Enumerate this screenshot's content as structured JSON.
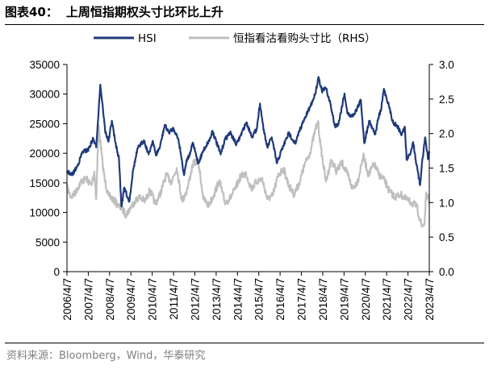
{
  "figure": {
    "label": "图表40：",
    "title": "上周恒指期权头寸比环比上升",
    "source": "资料来源：Bloomberg，Wind，华泰研究"
  },
  "colors": {
    "hsi": "#1F3A7A",
    "ratio": "#BFBFBF"
  },
  "chart_data": {
    "type": "line",
    "title": "",
    "x_type": "date",
    "x_range": [
      "2006-04-07",
      "2023-04-07"
    ],
    "categories": [
      "2006/4/7",
      "2007/4/7",
      "2008/4/7",
      "2009/4/7",
      "2010/4/7",
      "2011/4/7",
      "2012/4/7",
      "2013/4/7",
      "2014/4/7",
      "2015/4/7",
      "2016/4/7",
      "2017/4/7",
      "2018/4/7",
      "2019/4/7",
      "2020/4/7",
      "2021/4/7",
      "2022/4/7",
      "2023/4/7"
    ],
    "y_left": {
      "ticks": [
        "0",
        "5000",
        "10000",
        "15000",
        "20000",
        "25000",
        "30000",
        "35000"
      ],
      "lim": [
        0,
        35000
      ]
    },
    "y_right": {
      "ticks": [
        "0.0",
        "0.5",
        "1.0",
        "1.5",
        "2.0",
        "2.5",
        "3.0"
      ],
      "lim": [
        0,
        3.0
      ]
    },
    "legend_position": "top",
    "grid": false,
    "series": [
      {
        "name": "HSI",
        "axis": "left",
        "color": "#1F3A7A",
        "x": [
          "2006-04-07",
          "2006-07-01",
          "2006-10-01",
          "2007-01-01",
          "2007-04-01",
          "2007-07-01",
          "2007-08-20",
          "2007-10-30",
          "2007-12-15",
          "2008-01-20",
          "2008-03-20",
          "2008-05-15",
          "2008-07-15",
          "2008-09-15",
          "2008-10-27",
          "2008-12-15",
          "2009-03-09",
          "2009-05-15",
          "2009-08-01",
          "2009-11-15",
          "2010-02-05",
          "2010-04-15",
          "2010-06-08",
          "2010-08-15",
          "2010-11-08",
          "2011-01-15",
          "2011-04-08",
          "2011-07-01",
          "2011-08-10",
          "2011-10-04",
          "2011-11-15",
          "2012-01-15",
          "2012-03-01",
          "2012-06-04",
          "2012-09-01",
          "2012-12-31",
          "2013-02-01",
          "2013-06-24",
          "2013-09-01",
          "2013-12-02",
          "2014-03-20",
          "2014-06-01",
          "2014-09-03",
          "2014-12-15",
          "2015-03-01",
          "2015-04-28",
          "2015-07-08",
          "2015-09-01",
          "2015-11-15",
          "2016-02-12",
          "2016-05-01",
          "2016-09-01",
          "2016-12-28",
          "2017-03-01",
          "2017-06-01",
          "2017-09-01",
          "2017-11-22",
          "2018-01-26",
          "2018-03-23",
          "2018-06-01",
          "2018-08-15",
          "2018-10-30",
          "2019-01-03",
          "2019-04-15",
          "2019-06-05",
          "2019-08-15",
          "2019-11-01",
          "2020-01-20",
          "2020-03-19",
          "2020-06-10",
          "2020-09-25",
          "2020-11-15",
          "2021-01-01",
          "2021-02-17",
          "2021-05-01",
          "2021-07-28",
          "2021-10-01",
          "2021-12-20",
          "2022-02-10",
          "2022-03-15",
          "2022-05-10",
          "2022-07-05",
          "2022-09-01",
          "2022-10-31",
          "2022-12-01",
          "2023-01-27",
          "2023-03-15",
          "2023-04-07"
        ],
        "values": [
          17000,
          16300,
          17800,
          20300,
          20500,
          22500,
          21000,
          31600,
          27500,
          23800,
          22000,
          25500,
          21800,
          19000,
          11000,
          14200,
          11800,
          17200,
          20800,
          22200,
          19800,
          22100,
          19700,
          21000,
          24800,
          23500,
          24200,
          22300,
          20000,
          16300,
          18800,
          19800,
          21800,
          18300,
          20500,
          22600,
          23800,
          19800,
          22300,
          23500,
          21500,
          23000,
          25200,
          22800,
          24100,
          28400,
          23400,
          21000,
          22700,
          18300,
          20500,
          23400,
          21600,
          23800,
          25800,
          27800,
          29800,
          32900,
          30500,
          31000,
          28400,
          24600,
          25000,
          30100,
          26700,
          26200,
          27200,
          29000,
          21700,
          25500,
          23200,
          26000,
          27300,
          30900,
          28500,
          25100,
          24700,
          23100,
          24500,
          18900,
          19800,
          21900,
          18000,
          14600,
          18200,
          22700,
          19000,
          20300
        ]
      },
      {
        "name": "恒指看沽看购头寸比（RHS）",
        "axis": "right",
        "color": "#BFBFBF",
        "x": [
          "2006-04-07",
          "2006-06-15",
          "2006-09-01",
          "2006-12-01",
          "2007-03-01",
          "2007-06-01",
          "2007-07-20",
          "2007-08-20",
          "2007-10-01",
          "2007-12-10",
          "2008-01-20",
          "2008-03-20",
          "2008-06-01",
          "2008-09-01",
          "2008-11-15",
          "2009-01-15",
          "2009-04-01",
          "2009-06-15",
          "2009-09-01",
          "2009-12-01",
          "2010-03-01",
          "2010-06-01",
          "2010-09-01",
          "2010-12-01",
          "2011-03-01",
          "2011-06-01",
          "2011-09-01",
          "2011-12-01",
          "2012-03-01",
          "2012-06-01",
          "2012-09-01",
          "2012-12-01",
          "2013-03-01",
          "2013-06-01",
          "2013-09-01",
          "2013-12-01",
          "2014-03-01",
          "2014-06-01",
          "2014-09-01",
          "2014-12-01",
          "2015-03-01",
          "2015-06-01",
          "2015-09-01",
          "2015-12-01",
          "2016-03-01",
          "2016-06-01",
          "2016-09-01",
          "2016-12-01",
          "2017-03-01",
          "2017-06-01",
          "2017-09-01",
          "2017-12-01",
          "2018-01-15",
          "2018-03-01",
          "2018-06-01",
          "2018-09-01",
          "2018-12-01",
          "2019-03-01",
          "2019-06-01",
          "2019-09-01",
          "2019-12-01",
          "2020-03-01",
          "2020-06-01",
          "2020-09-01",
          "2020-12-01",
          "2021-03-01",
          "2021-06-01",
          "2021-09-01",
          "2021-12-01",
          "2022-03-01",
          "2022-06-01",
          "2022-09-01",
          "2022-12-01",
          "2023-01-15",
          "2023-02-15",
          "2023-04-07"
        ],
        "values": [
          1.22,
          1.08,
          1.15,
          1.3,
          1.35,
          1.25,
          1.45,
          1.05,
          2.12,
          1.55,
          1.3,
          1.1,
          1.05,
          0.96,
          0.9,
          0.82,
          0.93,
          1.02,
          1.08,
          1.02,
          1.18,
          0.98,
          1.15,
          1.4,
          1.3,
          1.5,
          1.02,
          1.2,
          1.55,
          1.62,
          1.05,
          0.96,
          1.12,
          1.32,
          1.0,
          1.06,
          1.2,
          1.38,
          1.42,
          1.2,
          1.3,
          1.35,
          1.05,
          1.1,
          1.38,
          1.5,
          1.25,
          1.12,
          1.28,
          1.55,
          1.72,
          2.05,
          2.18,
          1.82,
          1.3,
          1.62,
          1.45,
          1.58,
          1.42,
          1.2,
          1.32,
          1.68,
          1.4,
          1.56,
          1.4,
          1.32,
          1.15,
          1.08,
          1.12,
          1.05,
          1.0,
          0.95,
          0.65,
          0.7,
          1.15,
          0.98
        ]
      }
    ]
  }
}
